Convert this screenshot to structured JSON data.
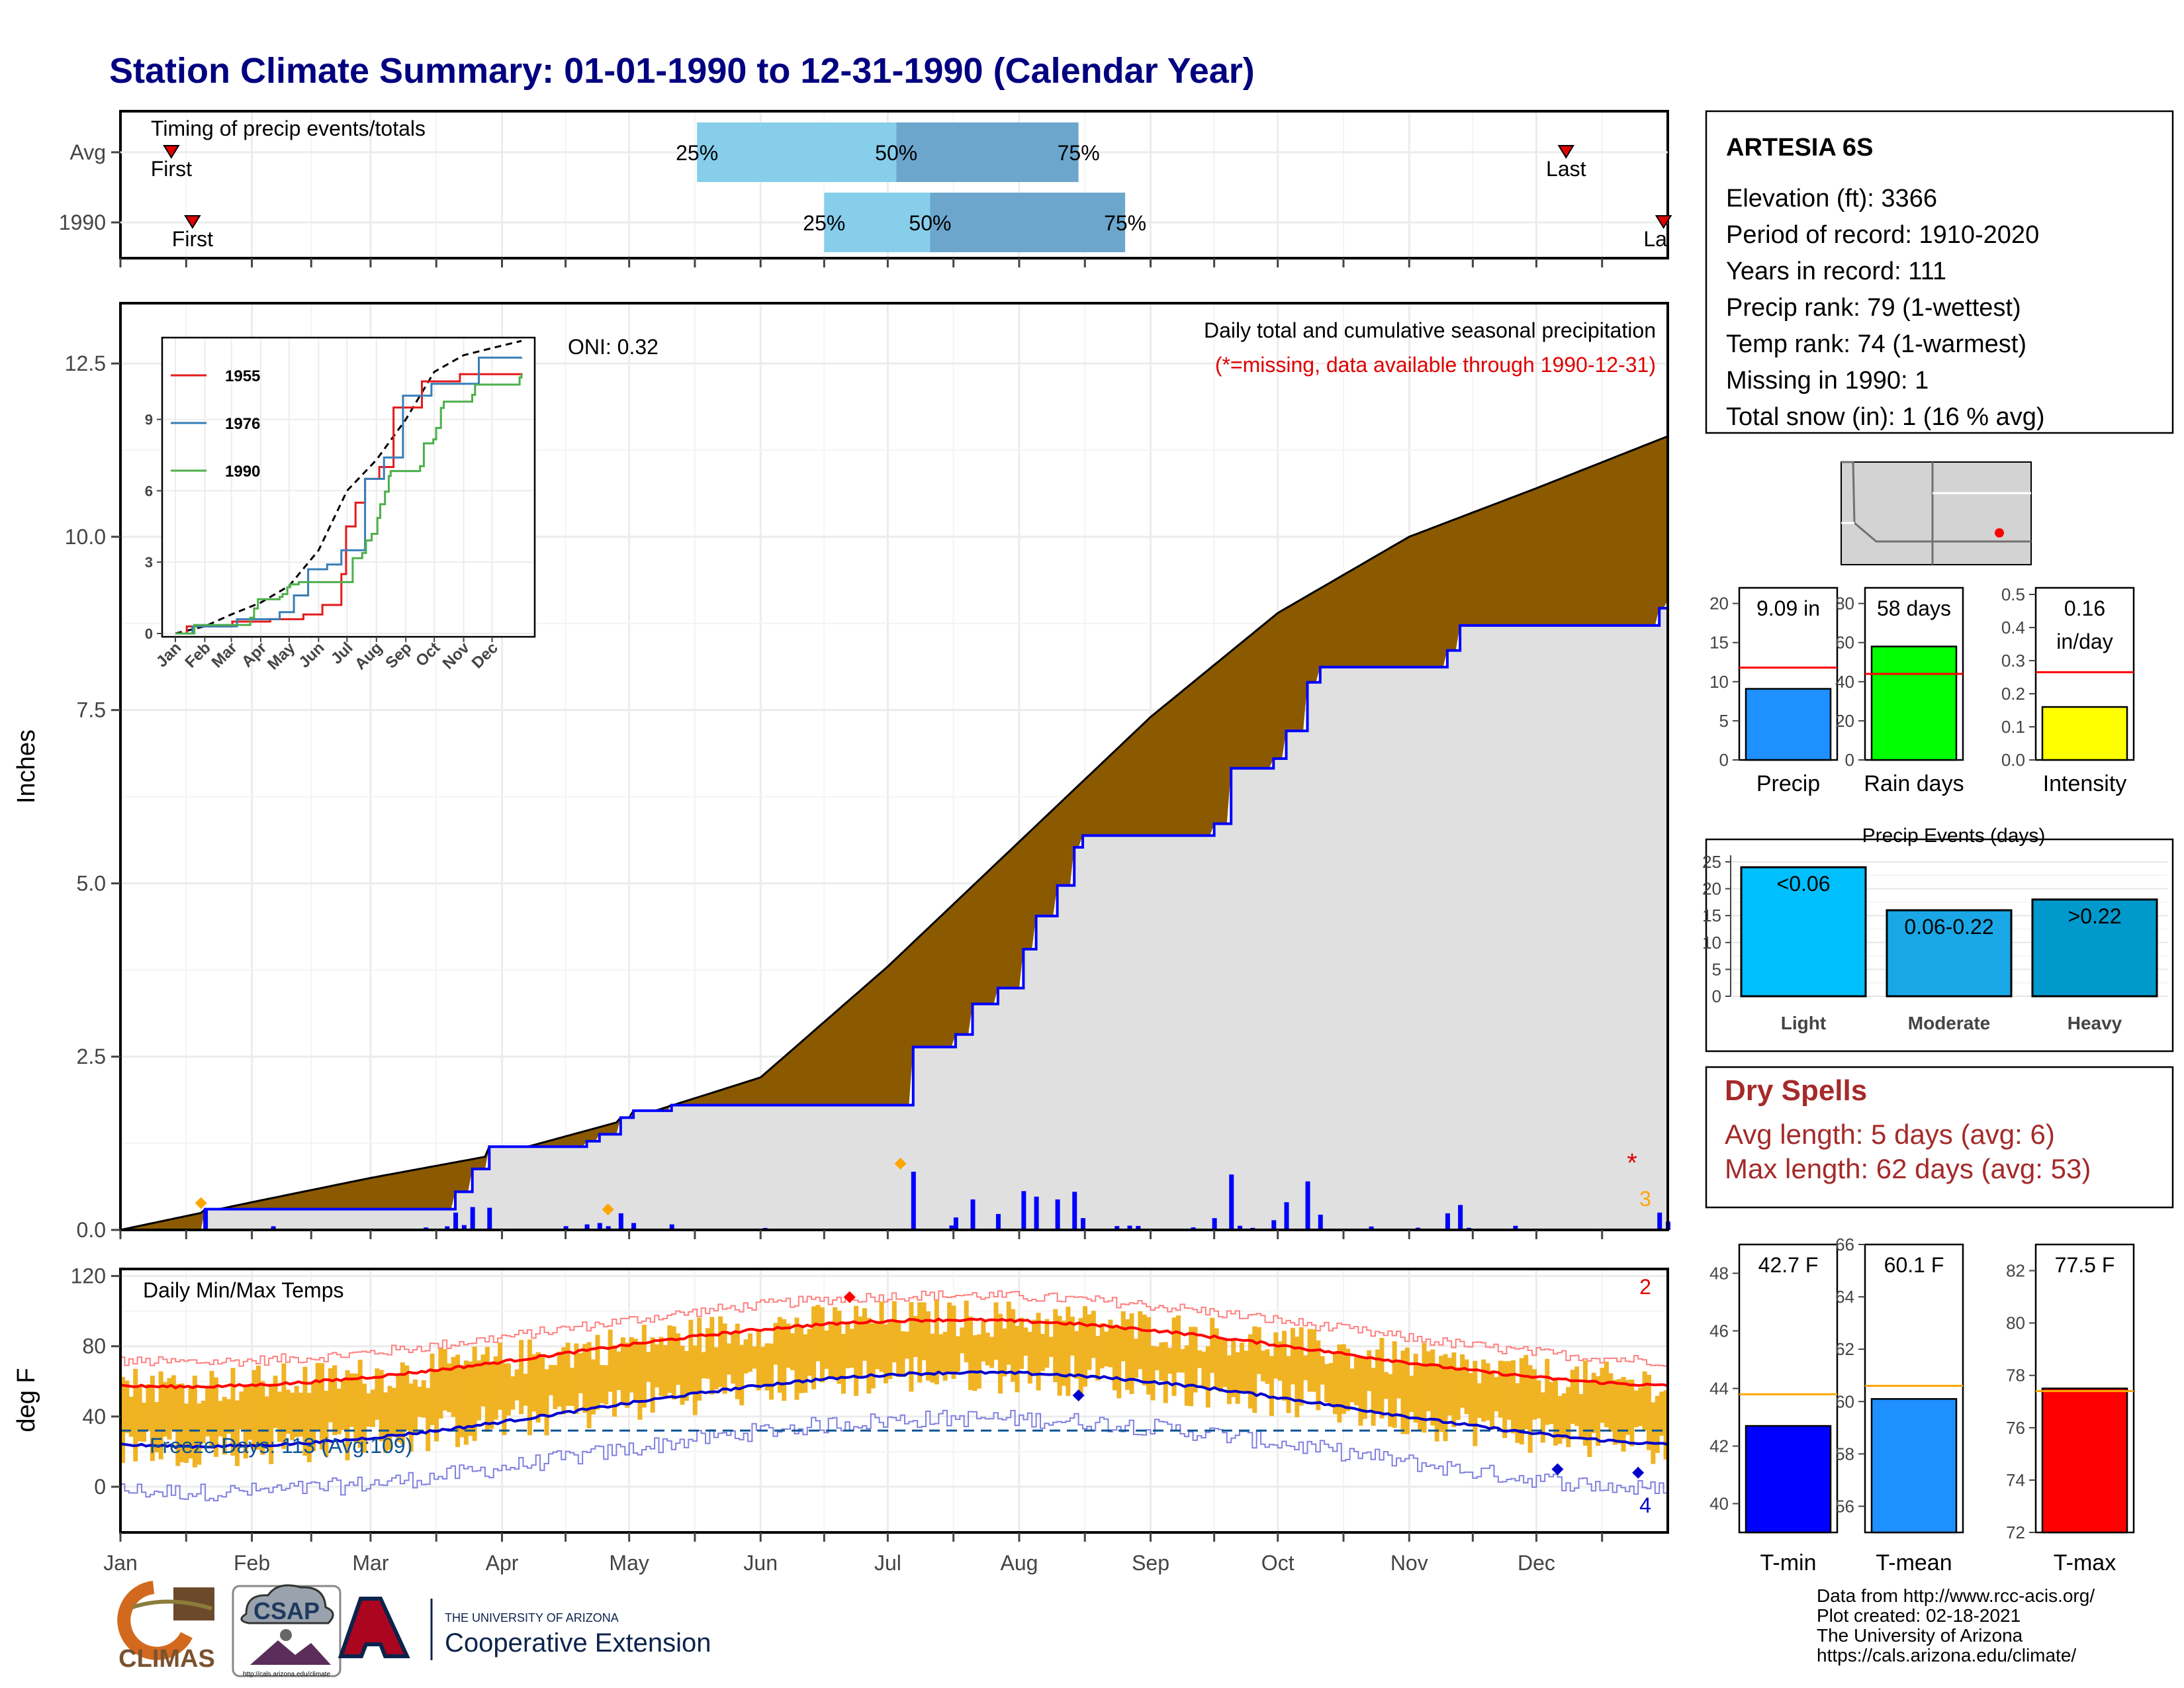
{
  "title": "Station Climate Summary: 01-01-1990 to 12-31-1990 (Calendar Year)",
  "months": [
    "Jan",
    "Feb",
    "Mar",
    "Apr",
    "May",
    "Jun",
    "Jul",
    "Aug",
    "Sep",
    "Oct",
    "Nov",
    "Dec"
  ],
  "timing": {
    "label": "Timing of precip events/totals",
    "rows": [
      {
        "name": "Avg",
        "first_doy": 12,
        "q25_doy": 136,
        "q50_doy": 183,
        "q75_doy": 226,
        "last_doy": 341,
        "first_label": "First",
        "last_label": "Last",
        "q25_label": "25%",
        "q50_label": "50%",
        "q75_label": "75%"
      },
      {
        "name": "1990",
        "first_doy": 17,
        "q25_doy": 166,
        "q50_doy": 191,
        "q75_doy": 237,
        "last_doy": 364,
        "first_label": "First",
        "last_label": "Last",
        "q25_label": "25%",
        "q50_label": "50%",
        "q75_label": "75%"
      }
    ]
  },
  "precip_panel": {
    "ylabel": "Inches",
    "yticks": [
      "0.0",
      "2.5",
      "5.0",
      "7.5",
      "10.0",
      "12.5"
    ],
    "note1": "Daily total and cumulative seasonal precipitation",
    "note2": "(*=missing, data available through 1990-12-31)",
    "oni": "ONI: 0.32",
    "missing_marker": "*",
    "missing_count": "3",
    "colors": {
      "avg_fill": "#8B5A00",
      "year_fill": "#E0E0E0",
      "year_line": "#0000FF",
      "daily_bar": "#0000FF",
      "marker": "#FFA500"
    }
  },
  "inset": {
    "months": [
      "Jan",
      "Feb",
      "Mar",
      "Apr",
      "May",
      "Jun",
      "Jul",
      "Aug",
      "Sep",
      "Oct",
      "Nov",
      "Dec"
    ],
    "yticks": [
      "0",
      "3",
      "6",
      "9"
    ],
    "series": [
      {
        "name": "1955",
        "color": "#E41A1C"
      },
      {
        "name": "1976",
        "color": "#377EB8"
      },
      {
        "name": "1990",
        "color": "#4DAF4A"
      }
    ]
  },
  "temp_panel": {
    "label": "Daily Min/Max Temps",
    "ylabel": "deg F",
    "yticks": [
      "0",
      "40",
      "80",
      "120"
    ],
    "freeze_label": "Freeze Days: 113 (Avg:109)",
    "count_top": "2",
    "count_bottom": "4",
    "colors": {
      "range_bar": "#F0B323",
      "avg_max": "#FF0000",
      "avg_min": "#0000CC"
    }
  },
  "station": {
    "name": "ARTESIA 6S",
    "lines": [
      "Elevation (ft): 3366",
      "Period of record: 1910-2020",
      "Years in record: 111",
      "Precip rank: 79 (1-wettest)",
      "Temp rank: 74 (1-warmest)",
      "Missing in 1990: 1",
      "Total snow (in): 1 (16 % avg)"
    ]
  },
  "mini_bars": [
    {
      "label": "Precip",
      "value": 9.09,
      "avg": 11.8,
      "ymax": 22,
      "ticks": [
        0,
        5,
        10,
        15,
        20
      ],
      "tick_labels": [
        "0",
        "5",
        "10",
        "15",
        "20"
      ],
      "text": "9.09 in",
      "color": "#1E90FF"
    },
    {
      "label": "Rain days",
      "value": 58,
      "avg": 44,
      "ymax": 88,
      "ticks": [
        0,
        20,
        40,
        60,
        80
      ],
      "tick_labels": [
        "0",
        "20",
        "40",
        "60",
        "80"
      ],
      "text": "58 days",
      "color": "#00FF00"
    },
    {
      "label": "Intensity",
      "value": 0.16,
      "avg": 0.265,
      "ymax": 0.52,
      "ticks": [
        0,
        0.1,
        0.2,
        0.3,
        0.4,
        0.5
      ],
      "tick_labels": [
        "0.0",
        "0.1",
        "0.2",
        "0.3",
        "0.4",
        "0.5"
      ],
      "text": "0.16",
      "text2": "in/day",
      "color": "#FFFF00"
    }
  ],
  "precip_events": {
    "title": "Precip Events (days)",
    "yticks": [
      0,
      5,
      10,
      15,
      20,
      25
    ],
    "categories": [
      "Light",
      "Moderate",
      "Heavy"
    ],
    "values": [
      24,
      16,
      18
    ],
    "bar_labels": [
      "<0.06",
      "0.06-0.22",
      ">0.22"
    ],
    "colors": [
      "#00BFFF",
      "#1AA7E6",
      "#0099CC"
    ]
  },
  "dry_spells": {
    "title": "Dry Spells",
    "avg": "Avg length: 5 days (avg: 6)",
    "max": "Max length: 62 days (avg: 53)"
  },
  "temp_bars": [
    {
      "label": "T-min",
      "value": 42.7,
      "avg": 43.8,
      "ymin": 39,
      "ymax": 49,
      "ticks": [
        40,
        42,
        44,
        46,
        48
      ],
      "text": "42.7 F",
      "color": "#0000FF"
    },
    {
      "label": "T-mean",
      "value": 60.1,
      "avg": 60.6,
      "ymin": 55,
      "ymax": 66,
      "ticks": [
        56,
        58,
        60,
        62,
        64,
        66
      ],
      "text": "60.1 F",
      "color": "#1E90FF"
    },
    {
      "label": "T-max",
      "value": 77.5,
      "avg": 77.4,
      "ymin": 72,
      "ymax": 83,
      "ticks": [
        72,
        74,
        76,
        78,
        80,
        82
      ],
      "text": "77.5 F",
      "color": "#FF0000"
    }
  ],
  "footer": {
    "credits": [
      "Data from http://www.rcc-acis.org/",
      "Plot created: 02-18-2021",
      "The University of Arizona",
      "https://cals.arizona.edu/climate/"
    ],
    "climas": "CLIMAS",
    "csap": "CSAP",
    "csap_url": "http://cals.arizona.edu/climate",
    "ua_small": "THE UNIVERSITY OF ARIZONA",
    "ua_big": "Cooperative Extension"
  }
}
